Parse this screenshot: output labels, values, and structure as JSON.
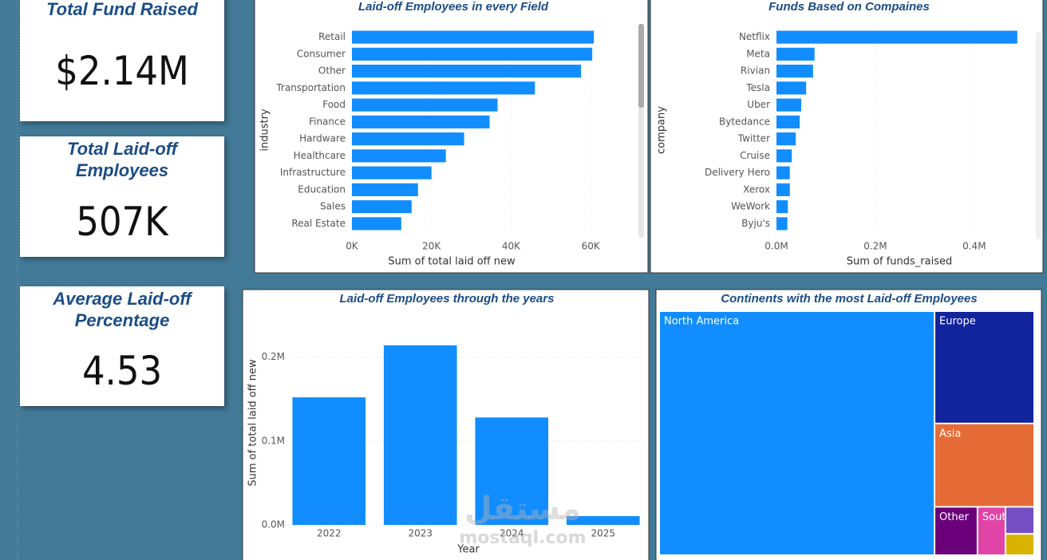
{
  "cards": [
    {
      "title": "Total Fund Raised",
      "value": "$2.14M"
    },
    {
      "title": "Total Laid-off Employees",
      "value": "507K"
    },
    {
      "title": "Average Laid-off Percentage",
      "value": "4.53"
    }
  ],
  "chart_data": [
    {
      "type": "hbar",
      "title": "Laid-off Employees in every Field",
      "x_label": "Sum of total laid off new",
      "y_label": "industry",
      "categories": [
        "Retail",
        "Consumer",
        "Other",
        "Transportation",
        "Food",
        "Finance",
        "Hardware",
        "Healthcare",
        "Infrastructure",
        "Education",
        "Sales",
        "Real Estate"
      ],
      "values": [
        60800,
        60400,
        57600,
        46000,
        36600,
        34600,
        28200,
        23600,
        20000,
        16600,
        15000,
        12400
      ],
      "color": "#118dff",
      "xlim": [
        0,
        70000
      ],
      "xticks": [
        {
          "value": 0,
          "label": "0K"
        },
        {
          "value": 20000,
          "label": "20K"
        },
        {
          "value": 40000,
          "label": "40K"
        },
        {
          "value": 60000,
          "label": "60K"
        }
      ]
    },
    {
      "type": "hbar",
      "title": "Funds Based on Compaines",
      "x_label": "Sum of funds_raised",
      "y_label": "company",
      "categories": [
        "Netflix",
        "Meta",
        "Rivian",
        "Tesla",
        "Uber",
        "Bytedance",
        "Twitter",
        "Cruise",
        "Delivery Hero",
        "Xerox",
        "WeWork",
        "Byju's"
      ],
      "values": [
        487000,
        77000,
        74000,
        60000,
        50000,
        47000,
        39000,
        31000,
        27000,
        27000,
        23000,
        22000
      ],
      "color": "#118dff",
      "xlim": [
        0,
        510000
      ],
      "xticks": [
        {
          "value": 0,
          "label": "0.0M"
        },
        {
          "value": 200000,
          "label": "0.2M"
        },
        {
          "value": 400000,
          "label": "0.4M"
        }
      ]
    },
    {
      "type": "bar",
      "title": "Laid-off Employees through the years",
      "x_label": "Year",
      "y_label": "Sum of total laid off new",
      "categories": [
        "2022",
        "2023",
        "2024",
        "2025"
      ],
      "values": [
        152000,
        214000,
        128000,
        10500
      ],
      "color": "#118dff",
      "ylim": [
        0,
        250000
      ],
      "grid": true,
      "yticks": [
        {
          "value": 0,
          "label": "0.0M"
        },
        {
          "value": 100000,
          "label": "0.1M"
        },
        {
          "value": 200000,
          "label": "0.2M"
        }
      ]
    },
    {
      "type": "treemap",
      "title": "Continents with the most Laid-off Employees",
      "categories": [
        "North America",
        "Europe",
        "Asia",
        "Other",
        "South...",
        null,
        null
      ],
      "values": [
        372000,
        62000,
        46000,
        11500,
        7500,
        4300,
        3400
      ],
      "colors": [
        "#118dff",
        "#12239e",
        "#e66c37",
        "#6b007b",
        "#e044a7",
        "#744ec2",
        "#d9b300"
      ]
    }
  ],
  "watermark": {
    "arabic": "مستقل",
    "latin": "mostaql.com"
  }
}
